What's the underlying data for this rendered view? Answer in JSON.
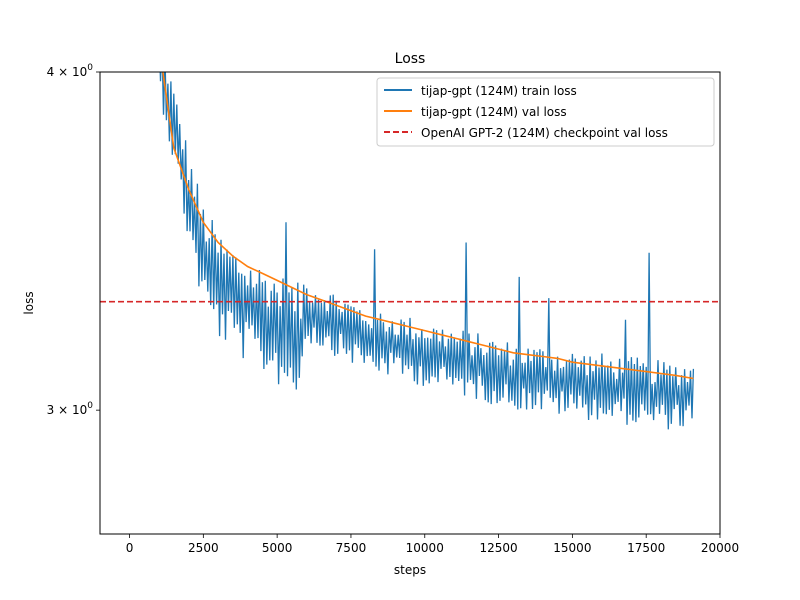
{
  "chart_data": {
    "type": "line",
    "title": "Loss",
    "xlabel": "steps",
    "ylabel": "loss",
    "xlim": [
      -1000,
      20000
    ],
    "ylim": [
      2.7,
      4.0
    ],
    "yscale": "log",
    "x_ticks": [
      0,
      2500,
      5000,
      7500,
      10000,
      12500,
      15000,
      17500,
      20000
    ],
    "x_tick_labels": [
      "0",
      "2500",
      "5000",
      "7500",
      "10000",
      "12500",
      "15000",
      "17500",
      "20000"
    ],
    "y_ticks": [
      {
        "value": 4.0,
        "mantissa": "4",
        "base": "10",
        "exp": "0"
      },
      {
        "value": 3.0,
        "mantissa": "3",
        "base": "10",
        "exp": "0"
      }
    ],
    "y_tick_sep": "×",
    "legend_position": "top-right",
    "series": [
      {
        "name": "tijap-gpt (124M) train loss",
        "style": "noisy-line",
        "color": "#1f77b4",
        "x_step": 50,
        "center": [
          [
            1000,
            4.05
          ],
          [
            1500,
            3.82
          ],
          [
            2000,
            3.6
          ],
          [
            2500,
            3.42
          ],
          [
            3000,
            3.34
          ],
          [
            4000,
            3.27
          ],
          [
            5000,
            3.22
          ],
          [
            5800,
            3.18
          ],
          [
            5900,
            3.27
          ],
          [
            7000,
            3.23
          ],
          [
            8000,
            3.19
          ],
          [
            9000,
            3.17
          ],
          [
            10000,
            3.15
          ],
          [
            11000,
            3.13
          ],
          [
            12000,
            3.11
          ],
          [
            13000,
            3.09
          ],
          [
            14000,
            3.08
          ],
          [
            15000,
            3.07
          ],
          [
            16000,
            3.06
          ],
          [
            17000,
            3.05
          ],
          [
            18000,
            3.04
          ],
          [
            19100,
            3.04
          ]
        ],
        "spread": [
          [
            1000,
            0.12
          ],
          [
            2500,
            0.16
          ],
          [
            4000,
            0.15
          ],
          [
            5800,
            0.16
          ],
          [
            5900,
            0.09
          ],
          [
            10000,
            0.09
          ],
          [
            19100,
            0.09
          ]
        ],
        "spikes": [
          [
            5300,
            3.52
          ],
          [
            8300,
            3.44
          ],
          [
            11400,
            3.46
          ],
          [
            13200,
            3.36
          ],
          [
            14200,
            3.3
          ],
          [
            16800,
            3.24
          ],
          [
            17600,
            3.43
          ]
        ]
      },
      {
        "name": "tijap-gpt (124M) val loss",
        "style": "line",
        "color": "#ff7f0e",
        "x": [
          1100,
          1500,
          2000,
          2500,
          3000,
          3500,
          4000,
          4500,
          5000,
          5500,
          6000,
          6500,
          7000,
          7500,
          8000,
          8500,
          9000,
          9500,
          10000,
          10500,
          11000,
          11500,
          12000,
          12500,
          13000,
          13500,
          14000,
          14500,
          15000,
          15500,
          16000,
          16500,
          17000,
          17500,
          18000,
          18500,
          19100
        ],
        "y": [
          4.02,
          3.75,
          3.62,
          3.52,
          3.46,
          3.42,
          3.39,
          3.37,
          3.35,
          3.33,
          3.31,
          3.295,
          3.28,
          3.265,
          3.25,
          3.24,
          3.23,
          3.22,
          3.21,
          3.2,
          3.19,
          3.18,
          3.17,
          3.16,
          3.15,
          3.145,
          3.14,
          3.135,
          3.125,
          3.12,
          3.115,
          3.11,
          3.105,
          3.1,
          3.095,
          3.09,
          3.082
        ]
      },
      {
        "name": "OpenAI GPT-2 (124M) checkpoint val loss",
        "style": "hline-dashed",
        "color": "#d62728",
        "y": 3.29
      }
    ]
  }
}
